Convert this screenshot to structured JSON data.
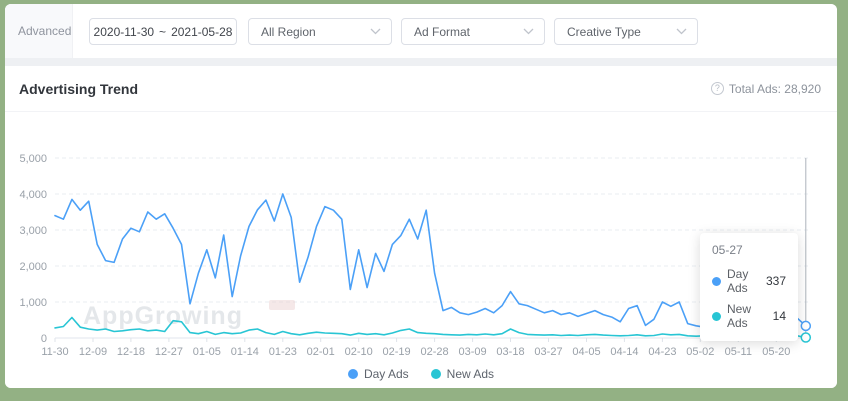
{
  "frame_color": "#93b184",
  "filter_bar": {
    "advanced_label": "Advanced",
    "date_start": "2020-11-30",
    "date_separator": "~",
    "date_end": "2021-05-28",
    "dropdowns": [
      {
        "label": "All Region"
      },
      {
        "label": "Ad Format"
      },
      {
        "label": "Creative Type"
      }
    ]
  },
  "panel": {
    "title": "Advertising Trend",
    "total_ads_label": "Total Ads: 28,920",
    "help_glyph": "?"
  },
  "watermark": "AppGrowing",
  "tooltip": {
    "date": "05-27",
    "rows": [
      {
        "name": "Day Ads",
        "value": "337",
        "color": "#4ba0f7"
      },
      {
        "name": "New Ads",
        "value": "14",
        "color": "#28c5d4"
      }
    ]
  },
  "legend": [
    {
      "label": "Day Ads",
      "color": "#4ba0f7"
    },
    {
      "label": "New Ads",
      "color": "#28c5d4"
    }
  ],
  "chart_data": {
    "type": "line",
    "title": "Advertising Trend",
    "ylim": [
      0,
      5000
    ],
    "y_ticks": [
      0,
      1000,
      2000,
      3000,
      4000,
      5000
    ],
    "grid": "dashed horizontal",
    "legend_position": "bottom",
    "x_tick_labels": [
      "11-30",
      "12-09",
      "12-18",
      "12-27",
      "01-05",
      "01-14",
      "01-23",
      "02-01",
      "02-10",
      "02-19",
      "02-28",
      "03-09",
      "03-18",
      "03-27",
      "04-05",
      "04-14",
      "04-23",
      "05-02",
      "05-11",
      "05-20"
    ],
    "x_tick_step_days": 9,
    "x": [
      "11-30",
      "12-02",
      "12-04",
      "12-06",
      "12-08",
      "12-10",
      "12-12",
      "12-14",
      "12-16",
      "12-18",
      "12-20",
      "12-22",
      "12-24",
      "12-26",
      "12-28",
      "12-30",
      "01-01",
      "01-03",
      "01-05",
      "01-07",
      "01-09",
      "01-11",
      "01-13",
      "01-15",
      "01-17",
      "01-19",
      "01-21",
      "01-23",
      "01-25",
      "01-27",
      "01-29",
      "01-31",
      "02-02",
      "02-04",
      "02-06",
      "02-08",
      "02-10",
      "02-12",
      "02-14",
      "02-16",
      "02-18",
      "02-20",
      "02-22",
      "02-24",
      "02-26",
      "02-28",
      "03-02",
      "03-04",
      "03-06",
      "03-08",
      "03-10",
      "03-12",
      "03-14",
      "03-16",
      "03-18",
      "03-20",
      "03-22",
      "03-24",
      "03-26",
      "03-28",
      "03-30",
      "04-01",
      "04-03",
      "04-05",
      "04-07",
      "04-09",
      "04-11",
      "04-13",
      "04-15",
      "04-17",
      "04-19",
      "04-21",
      "04-23",
      "04-25",
      "04-27",
      "04-29",
      "05-01",
      "05-03",
      "05-05",
      "05-07",
      "05-09",
      "05-11",
      "05-13",
      "05-15",
      "05-17",
      "05-19",
      "05-21",
      "05-23",
      "05-25",
      "05-27",
      "05-28"
    ],
    "series": [
      {
        "name": "Day Ads",
        "color": "#4ba0f7",
        "values": [
          3400,
          3300,
          3850,
          3550,
          3800,
          2600,
          2150,
          2100,
          2750,
          3050,
          2950,
          3500,
          3300,
          3450,
          3050,
          2600,
          950,
          1800,
          2450,
          1670,
          2860,
          1150,
          2280,
          3100,
          3560,
          3830,
          3250,
          4000,
          3350,
          1550,
          2250,
          3100,
          3650,
          3550,
          3300,
          1350,
          2450,
          1400,
          2350,
          1850,
          2600,
          2850,
          3300,
          2750,
          3550,
          1800,
          760,
          850,
          700,
          650,
          720,
          820,
          700,
          900,
          1290,
          950,
          900,
          800,
          700,
          760,
          650,
          700,
          600,
          680,
          760,
          650,
          580,
          450,
          820,
          900,
          350,
          520,
          1000,
          880,
          1000,
          400,
          340,
          300,
          330,
          320,
          270,
          300,
          320,
          350,
          400,
          500,
          650,
          700,
          550,
          337,
          300
        ]
      },
      {
        "name": "New Ads",
        "color": "#28c5d4",
        "values": [
          280,
          320,
          570,
          300,
          250,
          220,
          250,
          180,
          200,
          230,
          250,
          200,
          220,
          180,
          480,
          450,
          150,
          120,
          180,
          100,
          150,
          120,
          140,
          220,
          250,
          150,
          100,
          180,
          120,
          90,
          130,
          160,
          140,
          130,
          120,
          80,
          130,
          100,
          120,
          90,
          140,
          210,
          250,
          150,
          130,
          120,
          100,
          90,
          80,
          100,
          90,
          110,
          90,
          120,
          250,
          150,
          100,
          90,
          80,
          90,
          70,
          80,
          70,
          90,
          100,
          80,
          70,
          60,
          70,
          90,
          60,
          70,
          110,
          90,
          100,
          60,
          50,
          60,
          50,
          55,
          45,
          50,
          55,
          60,
          70,
          90,
          100,
          80,
          60,
          14,
          20
        ]
      }
    ],
    "hover": {
      "date": "05-27",
      "values": [
        337,
        14
      ]
    }
  }
}
